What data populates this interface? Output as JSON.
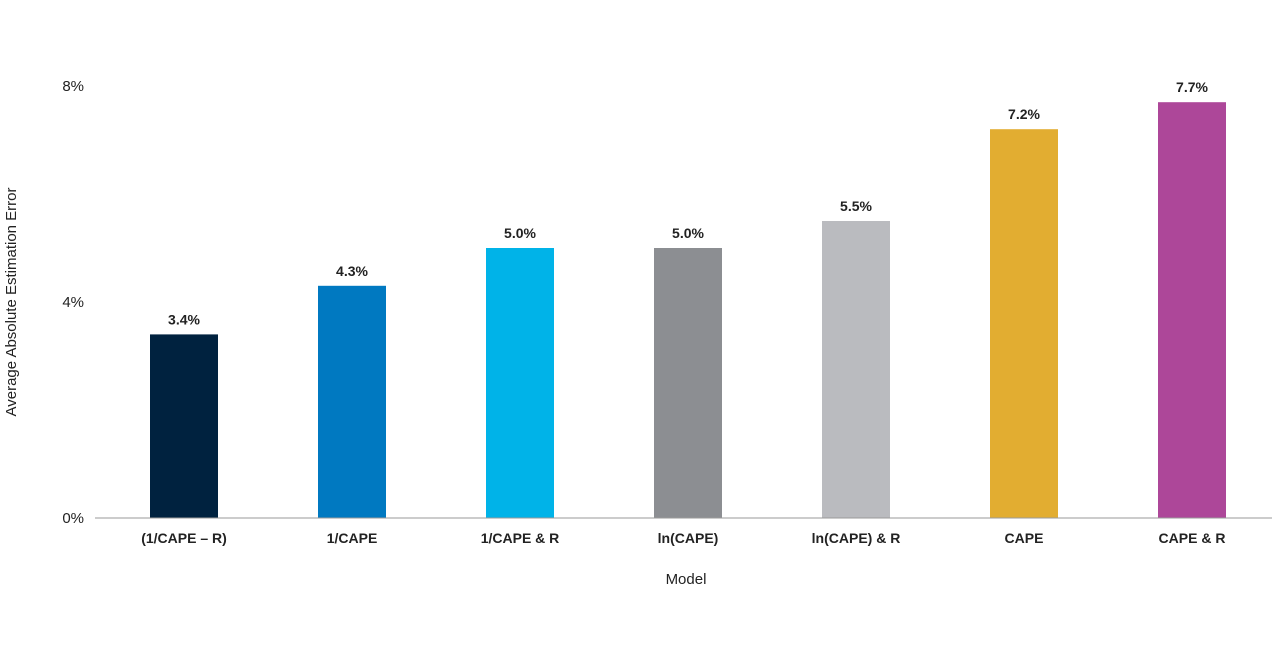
{
  "chart_data": {
    "type": "bar",
    "title": "",
    "xlabel": "Model",
    "ylabel": "Average Absolute Estimation Error",
    "ylim": [
      0,
      8
    ],
    "yticks": [
      0,
      4,
      8
    ],
    "ytick_labels": [
      "0%",
      "4%",
      "8%"
    ],
    "grid": false,
    "legend": "none",
    "categories": [
      "(1/CAPE – R)",
      "1/CAPE",
      "1/CAPE & R",
      "ln(CAPE)",
      "ln(CAPE) & R",
      "CAPE",
      "CAPE & R"
    ],
    "values": [
      3.4,
      4.3,
      5.0,
      5.0,
      5.5,
      7.2,
      7.7
    ],
    "value_labels": [
      "3.4%",
      "4.3%",
      "5.0%",
      "5.0%",
      "5.5%",
      "7.2%",
      "7.7%"
    ],
    "colors": [
      "#00223f",
      "#0079c1",
      "#00b3e8",
      "#8c8e92",
      "#babbbf",
      "#e2ad31",
      "#ad4799"
    ]
  }
}
